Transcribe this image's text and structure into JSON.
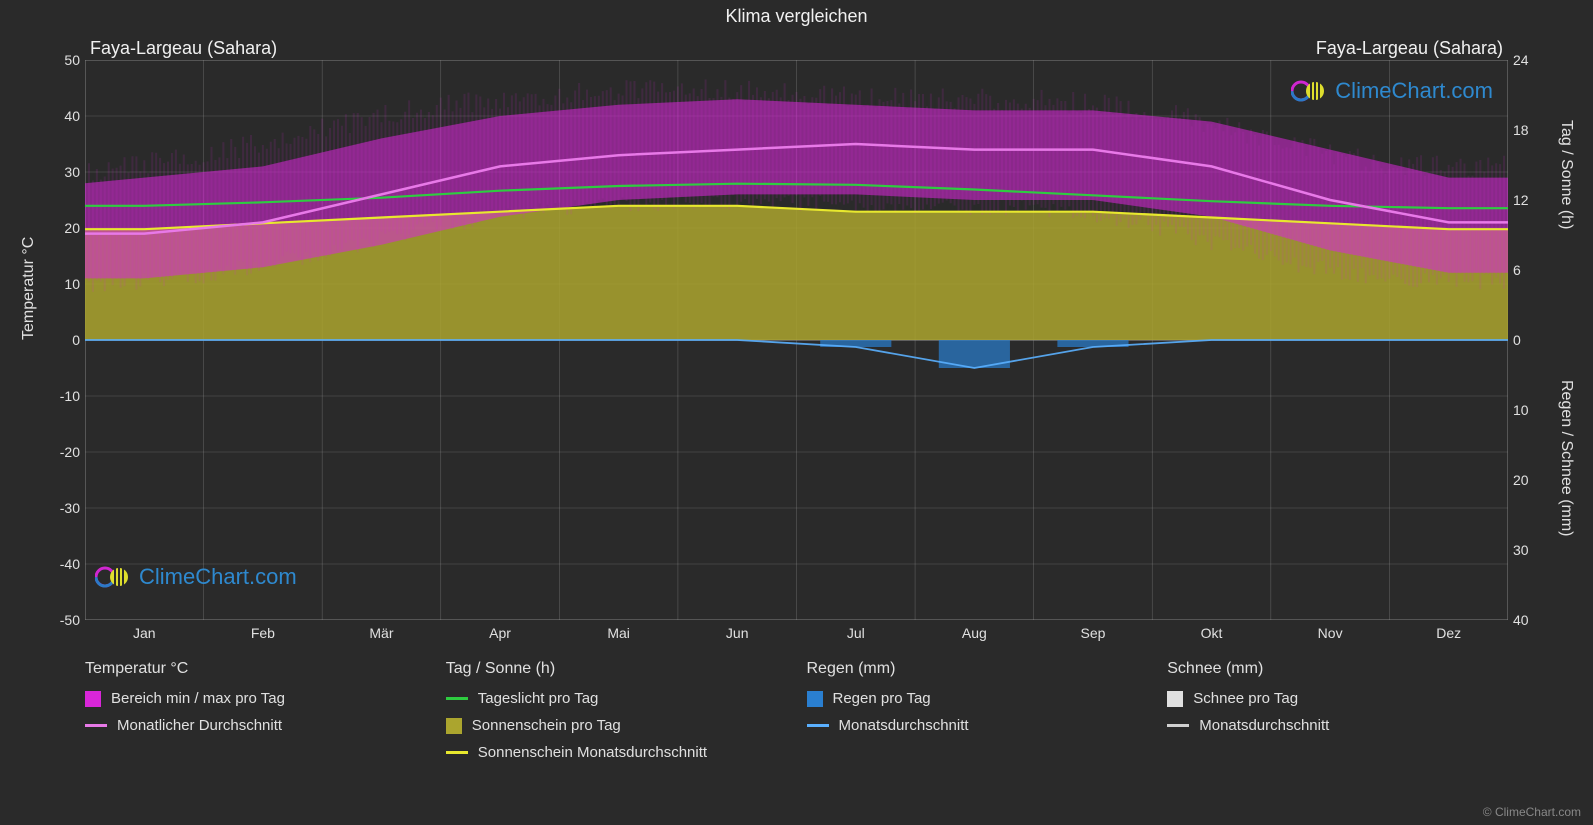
{
  "title": "Klima vergleichen",
  "subtitle_left": "Faya-Largeau (Sahara)",
  "subtitle_right": "Faya-Largeau (Sahara)",
  "colors": {
    "background": "#2a2a2a",
    "grid": "#9a9a9a",
    "text": "#e0e0e0",
    "temp_range_fill": "#d926d9",
    "temp_avg_line": "#e879e8",
    "daylight_line": "#2ecc40",
    "sunshine_fill": "#aba52e",
    "sunshine_avg_line": "#e8e82e",
    "rain_fill": "#2a7fd0",
    "rain_avg_line": "#5ab0ff",
    "snow_fill": "#e0e0e0",
    "snow_avg_line": "#d0d0d0"
  },
  "y_left": {
    "label": "Temperatur °C",
    "min": -50,
    "max": 50,
    "step": 10,
    "ticks": [
      50,
      40,
      30,
      20,
      10,
      0,
      -10,
      -20,
      -30,
      -40,
      -50
    ]
  },
  "y_right_sun": {
    "label": "Tag / Sonne (h)",
    "min": 0,
    "max": 24,
    "ticks": [
      24,
      18,
      12,
      6,
      0
    ]
  },
  "y_right_rain": {
    "label": "Regen / Schnee (mm)",
    "min": 0,
    "max": 40,
    "ticks": [
      0,
      10,
      20,
      30,
      40
    ]
  },
  "months": [
    "Jan",
    "Feb",
    "Mär",
    "Apr",
    "Mai",
    "Jun",
    "Jul",
    "Aug",
    "Sep",
    "Okt",
    "Nov",
    "Dez"
  ],
  "series": {
    "temp_min": [
      11,
      13,
      17,
      22,
      25,
      26,
      26,
      25,
      25,
      22,
      16,
      12
    ],
    "temp_max": [
      28,
      31,
      36,
      40,
      42,
      43,
      42,
      41,
      41,
      39,
      34,
      29
    ],
    "temp_avg": [
      19,
      21,
      26,
      31,
      33,
      34,
      35,
      34,
      34,
      31,
      25,
      21
    ],
    "daylight_h": [
      11.5,
      11.8,
      12.2,
      12.8,
      13.2,
      13.4,
      13.3,
      12.9,
      12.4,
      11.9,
      11.5,
      11.3
    ],
    "sunshine_h": [
      9.5,
      10,
      10.5,
      11,
      11.5,
      11.5,
      11,
      11,
      11,
      10.5,
      10,
      9.5
    ],
    "rain_mm": [
      0,
      0,
      0,
      0,
      0,
      0,
      1,
      4,
      1,
      0,
      0,
      0
    ],
    "snow_mm": [
      0,
      0,
      0,
      0,
      0,
      0,
      0,
      0,
      0,
      0,
      0,
      0
    ]
  },
  "legend": {
    "temp": {
      "header": "Temperatur °C",
      "items": [
        {
          "kind": "swatch",
          "color": "#d926d9",
          "label": "Bereich min / max pro Tag"
        },
        {
          "kind": "line",
          "color": "#e879e8",
          "label": "Monatlicher Durchschnitt"
        }
      ]
    },
    "sun": {
      "header": "Tag / Sonne (h)",
      "items": [
        {
          "kind": "line",
          "color": "#2ecc40",
          "label": "Tageslicht pro Tag"
        },
        {
          "kind": "swatch",
          "color": "#aba52e",
          "label": "Sonnenschein pro Tag"
        },
        {
          "kind": "line",
          "color": "#e8e82e",
          "label": "Sonnenschein Monatsdurchschnitt"
        }
      ]
    },
    "rain": {
      "header": "Regen (mm)",
      "items": [
        {
          "kind": "swatch",
          "color": "#2a7fd0",
          "label": "Regen pro Tag"
        },
        {
          "kind": "line",
          "color": "#5ab0ff",
          "label": "Monatsdurchschnitt"
        }
      ]
    },
    "snow": {
      "header": "Schnee (mm)",
      "items": [
        {
          "kind": "swatch",
          "color": "#e0e0e0",
          "label": "Schnee pro Tag"
        },
        {
          "kind": "line",
          "color": "#d0d0d0",
          "label": "Monatsdurchschnitt"
        }
      ]
    }
  },
  "watermark_text": "ClimeChart.com",
  "copyright": "© ClimeChart.com"
}
